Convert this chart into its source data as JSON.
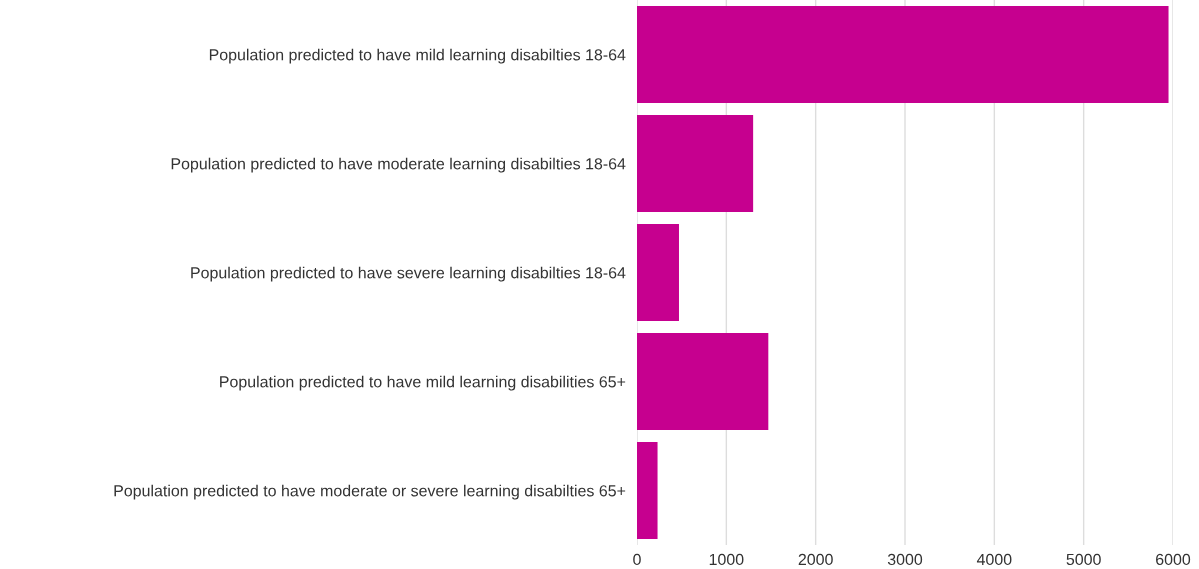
{
  "chart_data": {
    "type": "bar",
    "orientation": "horizontal",
    "categories": [
      "Population predicted to have mild learning disabilties 18-64",
      "Population predicted to have moderate learning disabilties 18-64",
      "Population predicted to have severe learning disabilties 18-64",
      "Population predicted to have mild learning disabilities 65+",
      "Population predicted to have moderate or severe learning disabilties 65+"
    ],
    "values": [
      5950,
      1300,
      470,
      1470,
      230
    ],
    "color": "#c6008f",
    "xlim": [
      0,
      6000
    ],
    "xticks": [
      0,
      1000,
      2000,
      3000,
      4000,
      5000,
      6000
    ],
    "grid": "x",
    "legend": false
  }
}
